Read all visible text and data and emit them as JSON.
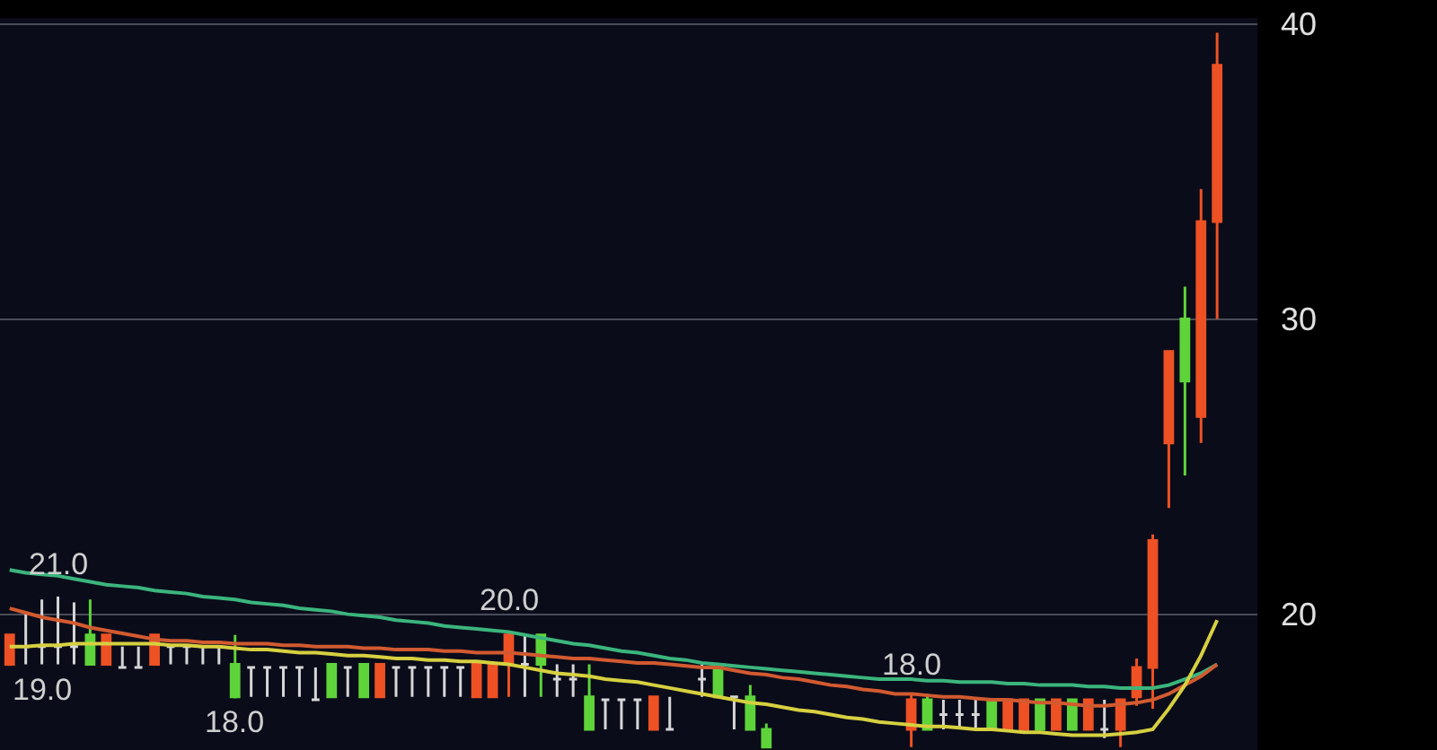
{
  "chart_data": {
    "type": "candlestick",
    "categories": [
      null,
      null,
      null,
      null,
      null,
      null,
      null,
      null,
      null,
      null,
      null,
      null,
      null,
      null,
      null,
      null,
      null,
      null,
      null,
      null,
      null,
      null,
      null,
      null,
      null,
      null,
      null,
      null,
      null,
      null,
      null,
      null,
      null,
      null,
      null,
      null,
      null,
      null,
      null,
      null,
      null,
      null,
      null,
      null,
      null,
      null,
      null,
      null,
      null,
      null,
      null,
      null,
      null,
      null,
      null,
      null,
      null,
      null,
      null,
      null,
      null,
      null,
      null,
      null,
      null,
      null,
      null,
      null,
      null,
      null,
      null,
      null,
      null,
      null,
      null,
      null
    ],
    "ohlc": [
      [
        18.3,
        19.3,
        18.25,
        19.3
      ],
      [
        18.9,
        20.0,
        18.3,
        18.9
      ],
      [
        18.9,
        20.5,
        18.3,
        18.9
      ],
      [
        18.9,
        20.6,
        18.3,
        18.9
      ],
      [
        18.9,
        20.4,
        18.3,
        18.9
      ],
      [
        19.3,
        20.5,
        18.3,
        18.3
      ],
      [
        18.3,
        19.3,
        18.3,
        19.3
      ],
      [
        18.2,
        18.9,
        18.2,
        18.2
      ],
      [
        18.2,
        18.9,
        18.2,
        18.2
      ],
      [
        18.3,
        19.3,
        18.3,
        19.3
      ],
      [
        18.9,
        18.9,
        18.3,
        18.9
      ],
      [
        18.9,
        18.9,
        18.3,
        18.9
      ],
      [
        18.9,
        18.9,
        18.3,
        18.9
      ],
      [
        18.9,
        18.9,
        18.3,
        18.9
      ],
      [
        18.3,
        19.3,
        17.15,
        17.2
      ],
      [
        18.2,
        18.2,
        17.2,
        18.2
      ],
      [
        18.2,
        18.2,
        17.2,
        18.2
      ],
      [
        18.2,
        18.2,
        17.2,
        18.2
      ],
      [
        18.2,
        18.2,
        17.2,
        18.2
      ],
      [
        17.1,
        18.2,
        17.1,
        17.1
      ],
      [
        18.3,
        18.3,
        17.2,
        17.2
      ],
      [
        18.2,
        18.2,
        17.2,
        18.2
      ],
      [
        18.3,
        18.3,
        17.2,
        17.2
      ],
      [
        17.2,
        18.3,
        17.2,
        18.3
      ],
      [
        18.2,
        18.2,
        17.2,
        18.2
      ],
      [
        18.2,
        18.2,
        17.2,
        18.2
      ],
      [
        18.2,
        18.2,
        17.2,
        18.2
      ],
      [
        18.2,
        18.2,
        17.2,
        18.2
      ],
      [
        18.2,
        18.2,
        17.2,
        18.2
      ],
      [
        17.2,
        18.3,
        17.2,
        18.3
      ],
      [
        17.2,
        18.3,
        17.2,
        18.3
      ],
      [
        18.3,
        19.4,
        17.2,
        19.3
      ],
      [
        18.3,
        19.3,
        17.2,
        18.3
      ],
      [
        19.3,
        19.3,
        17.2,
        18.3
      ],
      [
        17.8,
        18.3,
        17.2,
        17.8
      ],
      [
        17.8,
        18.3,
        17.2,
        17.8
      ],
      [
        17.2,
        18.3,
        16.1,
        16.1
      ],
      [
        17.1,
        17.1,
        16.1,
        17.1
      ],
      [
        17.1,
        17.1,
        16.1,
        17.1
      ],
      [
        17.1,
        17.1,
        16.1,
        17.1
      ],
      [
        16.1,
        17.2,
        16.1,
        17.2
      ],
      [
        16.1,
        17.2,
        16.1,
        16.1
      ],
      null,
      [
        17.8,
        18.3,
        17.2,
        17.8
      ],
      [
        18.3,
        18.3,
        17.2,
        17.2
      ],
      [
        17.2,
        17.2,
        16.1,
        17.2
      ],
      [
        17.2,
        17.6,
        16.1,
        16.1
      ],
      [
        16.1,
        16.3,
        15.5,
        15.5
      ],
      null,
      null,
      null,
      null,
      null,
      null,
      null,
      null,
      [
        16.1,
        17.25,
        15.5,
        17.1
      ],
      [
        17.1,
        17.3,
        16.1,
        16.1
      ],
      [
        16.6,
        17.1,
        16.1,
        16.6
      ],
      [
        16.6,
        17.1,
        16.1,
        16.6
      ],
      [
        16.6,
        17.1,
        16.1,
        16.6
      ],
      [
        17.1,
        17.1,
        16.1,
        16.1
      ],
      [
        16.1,
        17.1,
        16.1,
        17.1
      ],
      [
        16.1,
        17.1,
        16.1,
        17.1
      ],
      [
        17.1,
        17.1,
        16.1,
        16.1
      ],
      [
        16.1,
        17.1,
        16.1,
        17.1
      ],
      [
        17.1,
        17.1,
        16.1,
        16.1
      ],
      [
        16.1,
        17.1,
        16.1,
        17.1
      ],
      [
        16.1,
        17.1,
        15.8,
        16.1
      ],
      [
        16.1,
        17.1,
        15.5,
        17.1
      ],
      [
        17.2,
        18.5,
        16.9,
        18.2
      ],
      [
        18.2,
        22.7,
        16.8,
        22.5
      ],
      [
        25.8,
        28.9,
        23.6,
        28.9
      ],
      [
        30.0,
        31.1,
        24.7,
        27.9
      ],
      [
        26.7,
        34.4,
        25.8,
        33.3
      ],
      [
        33.3,
        39.7,
        30.0,
        38.6
      ]
    ],
    "colors": [
      "#ee5124",
      "#d6d6d6",
      "#d6d6d6",
      "#d6d6d6",
      "#d6d6d6",
      "#5ed43a",
      "#ee5124",
      "#d6d6d6",
      "#d6d6d6",
      "#ee5124",
      "#d6d6d6",
      "#d6d6d6",
      "#d6d6d6",
      "#d6d6d6",
      "#5ed43a",
      "#d6d6d6",
      "#d6d6d6",
      "#d6d6d6",
      "#d6d6d6",
      "#d6d6d6",
      "#5ed43a",
      "#d6d6d6",
      "#5ed43a",
      "#ee5124",
      "#d6d6d6",
      "#d6d6d6",
      "#d6d6d6",
      "#d6d6d6",
      "#d6d6d6",
      "#ee5124",
      "#ee5124",
      "#ee5124",
      "#d6d6d6",
      "#5ed43a",
      "#d6d6d6",
      "#d6d6d6",
      "#5ed43a",
      "#d6d6d6",
      "#d6d6d6",
      "#d6d6d6",
      "#ee5124",
      "#d6d6d6",
      null,
      "#d6d6d6",
      "#5ed43a",
      "#d6d6d6",
      "#5ed43a",
      "#5ed43a",
      null,
      null,
      null,
      null,
      null,
      null,
      null,
      null,
      "#ee5124",
      "#5ed43a",
      "#d6d6d6",
      "#d6d6d6",
      "#d6d6d6",
      "#5ed43a",
      "#ee5124",
      "#ee5124",
      "#5ed43a",
      "#ee5124",
      "#5ed43a",
      "#ee5124",
      "#d6d6d6",
      "#ee5124",
      "#ee5124",
      "#ee5124",
      "#ee5124",
      "#5ed43a",
      "#ee5124",
      "#ee5124"
    ],
    "series": [
      {
        "type": "line",
        "color": "#3bb57c",
        "values": [
          21.5,
          21.4,
          21.35,
          21.3,
          21.2,
          21.1,
          21.0,
          20.95,
          20.9,
          20.8,
          20.75,
          20.7,
          20.6,
          20.55,
          20.5,
          20.4,
          20.35,
          20.3,
          20.2,
          20.15,
          20.1,
          20.0,
          19.95,
          19.9,
          19.8,
          19.75,
          19.7,
          19.6,
          19.55,
          19.5,
          19.45,
          19.4,
          19.3,
          19.2,
          19.1,
          19.0,
          18.95,
          18.85,
          18.75,
          18.7,
          18.6,
          18.5,
          18.45,
          18.35,
          18.3,
          18.25,
          18.2,
          18.15,
          18.1,
          18.05,
          18.0,
          17.95,
          17.9,
          17.85,
          17.8,
          17.8,
          17.8,
          17.75,
          17.75,
          17.7,
          17.7,
          17.7,
          17.65,
          17.65,
          17.6,
          17.6,
          17.6,
          17.55,
          17.55,
          17.5,
          17.5,
          17.5,
          17.6,
          17.8,
          18.0,
          18.3
        ]
      },
      {
        "type": "line",
        "color": "#d25a30",
        "values": [
          20.2,
          20.05,
          19.9,
          19.8,
          19.7,
          19.55,
          19.45,
          19.35,
          19.25,
          19.15,
          19.1,
          19.1,
          19.05,
          19.05,
          19.0,
          19.0,
          19.0,
          18.95,
          18.95,
          18.9,
          18.9,
          18.9,
          18.85,
          18.85,
          18.8,
          18.8,
          18.8,
          18.75,
          18.75,
          18.7,
          18.7,
          18.7,
          18.65,
          18.6,
          18.55,
          18.5,
          18.5,
          18.45,
          18.4,
          18.35,
          18.35,
          18.3,
          18.25,
          18.2,
          18.2,
          18.1,
          18.0,
          17.95,
          17.85,
          17.8,
          17.7,
          17.6,
          17.55,
          17.45,
          17.4,
          17.3,
          17.3,
          17.25,
          17.2,
          17.2,
          17.15,
          17.1,
          17.1,
          17.05,
          17.0,
          17.0,
          16.95,
          16.9,
          16.9,
          16.95,
          17.0,
          17.1,
          17.3,
          17.6,
          17.9,
          18.3
        ]
      },
      {
        "type": "line",
        "color": "#d6d040",
        "values": [
          18.9,
          18.9,
          18.95,
          18.95,
          19.0,
          19.0,
          19.0,
          19.0,
          19.0,
          19.0,
          18.95,
          18.95,
          18.9,
          18.9,
          18.85,
          18.8,
          18.8,
          18.75,
          18.7,
          18.7,
          18.65,
          18.6,
          18.6,
          18.55,
          18.5,
          18.5,
          18.45,
          18.45,
          18.4,
          18.4,
          18.35,
          18.3,
          18.2,
          18.1,
          18.0,
          17.95,
          17.9,
          17.8,
          17.75,
          17.7,
          17.6,
          17.5,
          17.4,
          17.3,
          17.2,
          17.1,
          17.0,
          16.95,
          16.85,
          16.75,
          16.7,
          16.6,
          16.5,
          16.45,
          16.35,
          16.3,
          16.25,
          16.2,
          16.2,
          16.15,
          16.1,
          16.1,
          16.05,
          16.0,
          16.0,
          15.95,
          15.9,
          15.9,
          15.9,
          15.95,
          16.0,
          16.1,
          16.8,
          17.6,
          18.6,
          19.8
        ]
      }
    ],
    "annotations": [
      {
        "text": "21.0",
        "y": 20.6
      },
      {
        "text": "19.0",
        "y": 18.25
      },
      {
        "text": "18.0",
        "y": 17.15
      },
      {
        "text": "20.0",
        "y": 19.4
      },
      {
        "text": "18.0",
        "y": 17.25
      }
    ],
    "ylim": [
      15.4,
      40.2
    ],
    "yticks": [
      20,
      30,
      40
    ],
    "grid": "y",
    "tick_labels": "y"
  }
}
